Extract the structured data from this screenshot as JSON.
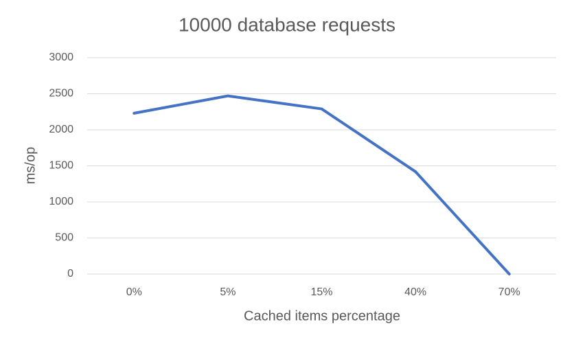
{
  "chart_data": {
    "type": "line",
    "title": "10000 database requests",
    "x_label": "Cached items percentage",
    "y_label": "ms/op",
    "categories": [
      "0%",
      "5%",
      "15%",
      "40%",
      "70%"
    ],
    "series": [
      {
        "name": "ms/op",
        "color": "#4472c4",
        "values": [
          2230,
          2470,
          2290,
          1420,
          0
        ]
      }
    ],
    "ylim": [
      0,
      3000
    ],
    "yticks": [
      0,
      500,
      1000,
      1500,
      2000,
      2500,
      3000
    ],
    "grid": true
  }
}
